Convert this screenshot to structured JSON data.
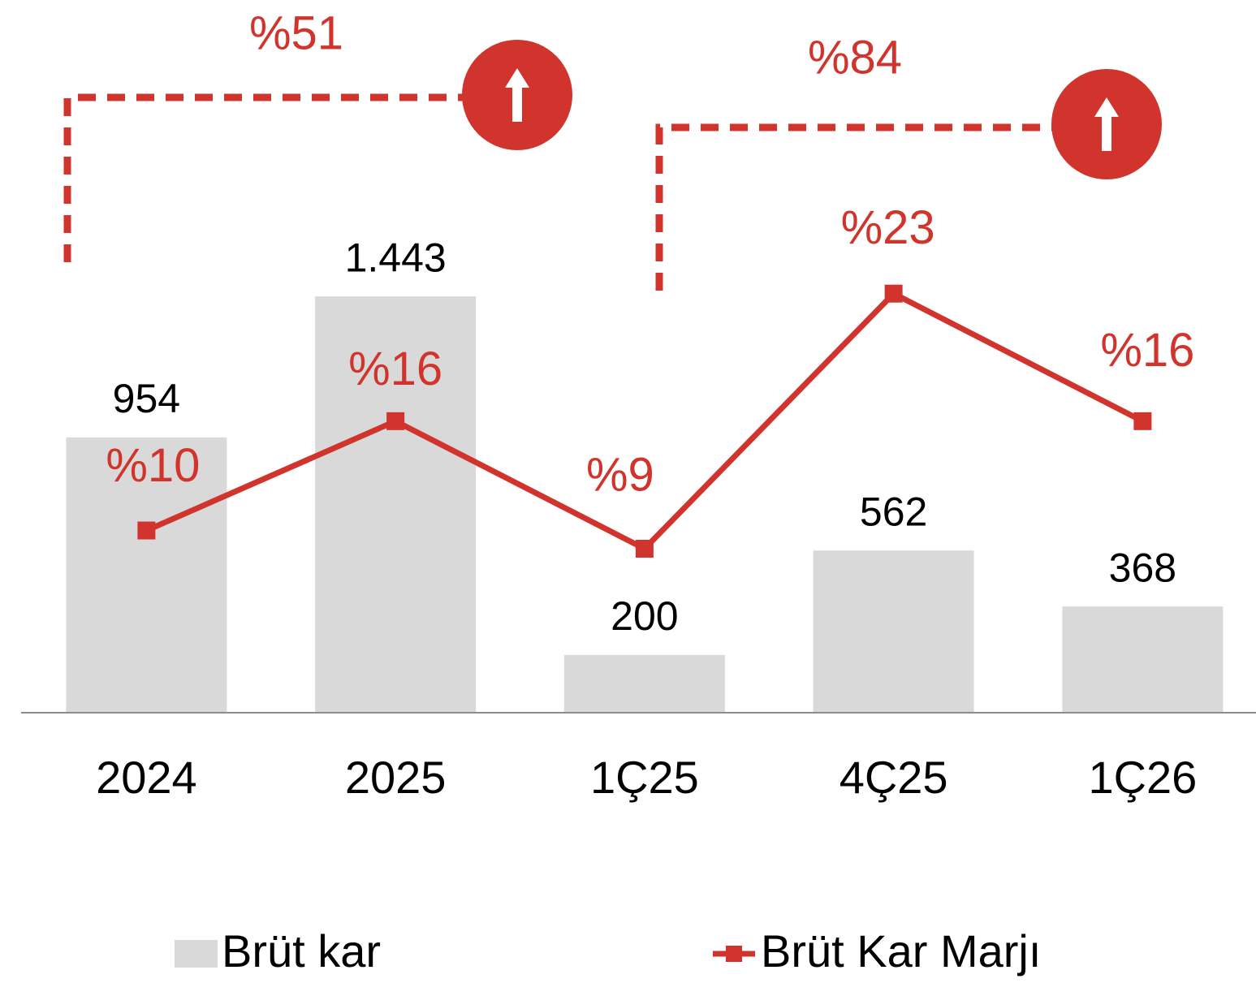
{
  "chart_data": {
    "type": "bar-line",
    "categories": [
      "2024",
      "2025",
      "1Ç25",
      "4Ç25",
      "1Ç26"
    ],
    "series": [
      {
        "name": "Brüt kar",
        "type": "bar",
        "color": "#d9d9d9",
        "values": [
          954,
          1443,
          200,
          562,
          368
        ],
        "value_labels": [
          "954",
          "1.443",
          "200",
          "562",
          "368"
        ]
      },
      {
        "name": "Brüt Kar Marjı",
        "type": "line",
        "axis": "y2",
        "color": "#d0342c",
        "values": [
          10,
          16,
          9,
          23,
          16
        ],
        "value_labels": [
          "%10",
          "%16",
          "%9",
          "%23",
          "%16"
        ]
      }
    ],
    "ylim": [
      0,
      2400
    ],
    "y2lim": [
      0,
      38
    ],
    "annotations": [
      "%51",
      "%84"
    ]
  }
}
